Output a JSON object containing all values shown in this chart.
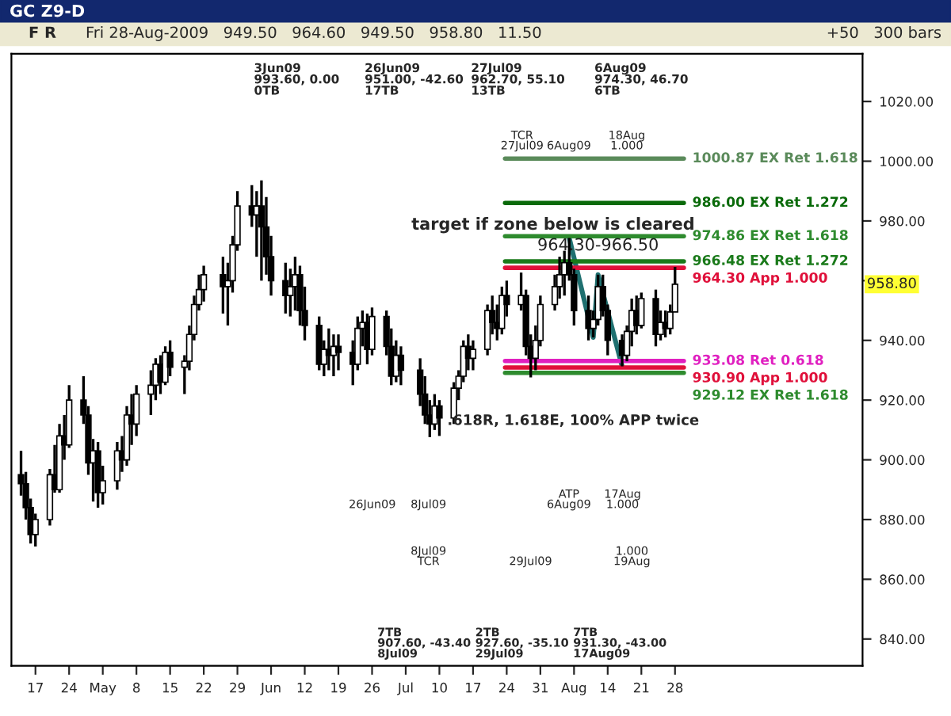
{
  "chart_data": {
    "type": "candlestick",
    "title": "GC Z9-D",
    "subtitle": "Fri 28-Aug-2009   949.50   964.60   949.50   958.80   11.50",
    "x": [
      "2009-04-14",
      "2009-04-15",
      "2009-04-16",
      "2009-04-17",
      "2009-04-20",
      "2009-04-21",
      "2009-04-22",
      "2009-04-23",
      "2009-04-24",
      "2009-04-27",
      "2009-04-28",
      "2009-04-29",
      "2009-04-30",
      "2009-05-01",
      "2009-05-04",
      "2009-05-05",
      "2009-05-06",
      "2009-05-07",
      "2009-05-08",
      "2009-05-11",
      "2009-05-12",
      "2009-05-13",
      "2009-05-14",
      "2009-05-15",
      "2009-05-18",
      "2009-05-19",
      "2009-05-20",
      "2009-05-21",
      "2009-05-22",
      "2009-05-26",
      "2009-05-27",
      "2009-05-28",
      "2009-05-29",
      "2009-06-01",
      "2009-06-02",
      "2009-06-03",
      "2009-06-04",
      "2009-06-05",
      "2009-06-08",
      "2009-06-09",
      "2009-06-10",
      "2009-06-11",
      "2009-06-12",
      "2009-06-15",
      "2009-06-16",
      "2009-06-17",
      "2009-06-18",
      "2009-06-19",
      "2009-06-22",
      "2009-06-23",
      "2009-06-24",
      "2009-06-25",
      "2009-06-26",
      "2009-06-29",
      "2009-06-30",
      "2009-07-01",
      "2009-07-02",
      "2009-07-06",
      "2009-07-07",
      "2009-07-08",
      "2009-07-09",
      "2009-07-10",
      "2009-07-13",
      "2009-07-14",
      "2009-07-15",
      "2009-07-16",
      "2009-07-17",
      "2009-07-20",
      "2009-07-21",
      "2009-07-22",
      "2009-07-23",
      "2009-07-24",
      "2009-07-27",
      "2009-07-28",
      "2009-07-29",
      "2009-07-30",
      "2009-07-31",
      "2009-08-03",
      "2009-08-04",
      "2009-08-05",
      "2009-08-06",
      "2009-08-07",
      "2009-08-10",
      "2009-08-11",
      "2009-08-12",
      "2009-08-13",
      "2009-08-14",
      "2009-08-17",
      "2009-08-18",
      "2009-08-19",
      "2009-08-20",
      "2009-08-21",
      "2009-08-24",
      "2009-08-25",
      "2009-08-26",
      "2009-08-27",
      "2009-08-28"
    ],
    "ohlc": [
      [
        895,
        903,
        888,
        892
      ],
      [
        892,
        896,
        880,
        884
      ],
      [
        884,
        887,
        872,
        875
      ],
      [
        875,
        882,
        871,
        880
      ],
      [
        880,
        897,
        878,
        895
      ],
      [
        895,
        905,
        889,
        890
      ],
      [
        890,
        912,
        889,
        908
      ],
      [
        908,
        915,
        900,
        905
      ],
      [
        905,
        925,
        904,
        920
      ],
      [
        920,
        928,
        912,
        915
      ],
      [
        915,
        918,
        895,
        899
      ],
      [
        899,
        907,
        886,
        903
      ],
      [
        903,
        906,
        884,
        889
      ],
      [
        889,
        898,
        885,
        893
      ],
      [
        893,
        906,
        890,
        903
      ],
      [
        903,
        908,
        896,
        900
      ],
      [
        900,
        918,
        898,
        915
      ],
      [
        915,
        922,
        905,
        912
      ],
      [
        912,
        925,
        908,
        922
      ],
      [
        922,
        930,
        915,
        925
      ],
      [
        925,
        934,
        920,
        932
      ],
      [
        932,
        935,
        922,
        926
      ],
      [
        926,
        938,
        925,
        936
      ],
      [
        936,
        940,
        928,
        931
      ],
      [
        931,
        935,
        922,
        933
      ],
      [
        933,
        945,
        930,
        942
      ],
      [
        942,
        955,
        940,
        952
      ],
      [
        952,
        962,
        950,
        957
      ],
      [
        957,
        965,
        953,
        962
      ],
      [
        962,
        968,
        949,
        958
      ],
      [
        958,
        966,
        945,
        960
      ],
      [
        960,
        975,
        956,
        972
      ],
      [
        972,
        990,
        970,
        985
      ],
      [
        985,
        992,
        978,
        982
      ],
      [
        982,
        990,
        968,
        985
      ],
      [
        985,
        993.6,
        960,
        978
      ],
      [
        978,
        988,
        962,
        968
      ],
      [
        968,
        975,
        955,
        960
      ],
      [
        960,
        966,
        949,
        955
      ],
      [
        955,
        964,
        948,
        958
      ],
      [
        958,
        968,
        950,
        962
      ],
      [
        962,
        965,
        945,
        950
      ],
      [
        950,
        958,
        940,
        945
      ],
      [
        945,
        948,
        930,
        932
      ],
      [
        932,
        940,
        928,
        937
      ],
      [
        937,
        944,
        930,
        935
      ],
      [
        935,
        942,
        928,
        938
      ],
      [
        938,
        942,
        930,
        936
      ],
      [
        936,
        940,
        925,
        932
      ],
      [
        932,
        948,
        930,
        944
      ],
      [
        944,
        950,
        938,
        946
      ],
      [
        946,
        949,
        932,
        937
      ],
      [
        937,
        951,
        935,
        948
      ],
      [
        948,
        950,
        935,
        938
      ],
      [
        938,
        944,
        925,
        928
      ],
      [
        928,
        940,
        926,
        935
      ],
      [
        935,
        938,
        925,
        930
      ],
      [
        930,
        934,
        918,
        922
      ],
      [
        922,
        928,
        912,
        915
      ],
      [
        915,
        920,
        907.6,
        912
      ],
      [
        912,
        922,
        910,
        918
      ],
      [
        918,
        920,
        908,
        914
      ],
      [
        914,
        926,
        912,
        924
      ],
      [
        924,
        930,
        920,
        928
      ],
      [
        928,
        940,
        926,
        938
      ],
      [
        938,
        942,
        930,
        934
      ],
      [
        934,
        940,
        930,
        937
      ],
      [
        937,
        952,
        935,
        950
      ],
      [
        950,
        955,
        942,
        946
      ],
      [
        946,
        952,
        940,
        944
      ],
      [
        944,
        958,
        942,
        955
      ],
      [
        955,
        960,
        948,
        952
      ],
      [
        952,
        962.7,
        950,
        955
      ],
      [
        955,
        957,
        935,
        938
      ],
      [
        938,
        942,
        927.6,
        934
      ],
      [
        934,
        945,
        930,
        940
      ],
      [
        940,
        955,
        938,
        952
      ],
      [
        952,
        962,
        950,
        958
      ],
      [
        958,
        968,
        954,
        962
      ],
      [
        962,
        970,
        955,
        966
      ],
      [
        966,
        974.3,
        960,
        962
      ],
      [
        962,
        964,
        945,
        950
      ],
      [
        950,
        955,
        940,
        944
      ],
      [
        944,
        950,
        941,
        947
      ],
      [
        947,
        962,
        945,
        958
      ],
      [
        958,
        962,
        948,
        950
      ],
      [
        950,
        952,
        935,
        940
      ],
      [
        940,
        942,
        931.3,
        935
      ],
      [
        935,
        945,
        933,
        943
      ],
      [
        943,
        954,
        938,
        950
      ],
      [
        950,
        955,
        942,
        945
      ],
      [
        945,
        956,
        944,
        954
      ],
      [
        954,
        957,
        938,
        942
      ],
      [
        942,
        950,
        940,
        946
      ],
      [
        946,
        950,
        941,
        944
      ],
      [
        944,
        952,
        942,
        949.5
      ],
      [
        949.5,
        964.6,
        949.5,
        958.8
      ]
    ],
    "series": [
      {
        "type": "line",
        "color": "#1f7070",
        "x": [
          "2009-08-06",
          "2009-08-11",
          "2009-08-12",
          "2009-08-17"
        ],
        "values": [
          974.3,
          941,
          962,
          931.3
        ]
      }
    ],
    "ref_lines": [
      {
        "axis": "y",
        "value": 1000.87,
        "label": "1000.87 EX Ret 1.618",
        "color": "#5a8a5a"
      },
      {
        "axis": "y",
        "value": 986.0,
        "label": "986.00 EX Ret 1.272",
        "color": "#0a6a0a"
      },
      {
        "axis": "y",
        "value": 974.86,
        "label": "974.86 EX Ret 1.618",
        "color": "#2e8b2e"
      },
      {
        "axis": "y",
        "value": 966.48,
        "label": "966.48 EX Ret 1.272",
        "color": "#1a7a1a"
      },
      {
        "axis": "y",
        "value": 964.3,
        "label": "964.30 App 1.000",
        "color": "#e0103a"
      },
      {
        "axis": "y",
        "value": 933.08,
        "label": "933.08 Ret 0.618",
        "color": "#e020c0"
      },
      {
        "axis": "y",
        "value": 930.9,
        "label": "930.90 App 1.000",
        "color": "#e0103a"
      },
      {
        "axis": "y",
        "value": 929.12,
        "label": "929.12 EX Ret 1.618",
        "color": "#2e8b2e"
      }
    ],
    "annotations": [
      "3Jun09\n993.60, 0.00\n0TB",
      "26Jun09\n951.00, -42.60\n17TB",
      "27Jul09\n962.70, 55.10\n13TB",
      "6Aug09\n974.30, 46.70\n6TB",
      "7TB\n907.60, -43.40\n8Jul09",
      "2TB\n927.60, -35.10\n29Jul09",
      "7TB\n931.30, -43.00\n17Aug09",
      "TCR\n27Jul09",
      "6Aug09",
      "18Aug\n1.000",
      "26Jun09",
      "8Jul09",
      "ATP\n6Aug09",
      "17Aug\n1.000",
      "8Jul09\nTCR",
      "29Jul09",
      "1.000\n19Aug",
      {
        "text": "964.30-966.50",
        "x": "2009-08-12",
        "y": 969
      },
      "target if zone below is cleared",
      ".618R, 1.618E, 100% APP twice",
      "958.80",
      "F R",
      "+50   300 bars"
    ],
    "xlim": [
      "2009-04-12",
      "2009-10-06"
    ],
    "xticks": [
      {
        "value": "2009-04-17",
        "label": "17"
      },
      {
        "value": "2009-04-24",
        "label": "24"
      },
      {
        "value": "2009-05-01",
        "label": "May"
      },
      {
        "value": "2009-05-08",
        "label": "8"
      },
      {
        "value": "2009-05-15",
        "label": "15"
      },
      {
        "value": "2009-05-22",
        "label": "22"
      },
      {
        "value": "2009-05-29",
        "label": "29"
      },
      {
        "value": "2009-06-05",
        "label": "Jun"
      },
      {
        "value": "2009-06-12",
        "label": "12"
      },
      {
        "value": "2009-06-19",
        "label": "19"
      },
      {
        "value": "2009-06-26",
        "label": "26"
      },
      {
        "value": "2009-07-03",
        "label": "Jul"
      },
      {
        "value": "2009-07-10",
        "label": "10"
      },
      {
        "value": "2009-07-17",
        "label": "17"
      },
      {
        "value": "2009-07-24",
        "label": "24"
      },
      {
        "value": "2009-07-31",
        "label": "31"
      },
      {
        "value": "2009-08-07",
        "label": "Aug"
      },
      {
        "value": "2009-08-14",
        "label": "14"
      },
      {
        "value": "2009-08-21",
        "label": "21"
      },
      {
        "value": "2009-08-28",
        "label": "28"
      }
    ],
    "ylim": [
      831,
      1036
    ],
    "yticks": [
      {
        "value": 840,
        "label": "840.00"
      },
      {
        "value": 860,
        "label": "860.00"
      },
      {
        "value": 880,
        "label": "880.00"
      },
      {
        "value": 900,
        "label": "900.00"
      },
      {
        "value": 920,
        "label": "920.00"
      },
      {
        "value": 940,
        "label": "940.00"
      },
      {
        "value": 960,
        "label": null
      },
      {
        "value": 980,
        "label": "980.00"
      },
      {
        "value": 1000,
        "label": "1000.00"
      },
      {
        "value": 1020,
        "label": "1020.00"
      }
    ],
    "grid": false
  }
}
